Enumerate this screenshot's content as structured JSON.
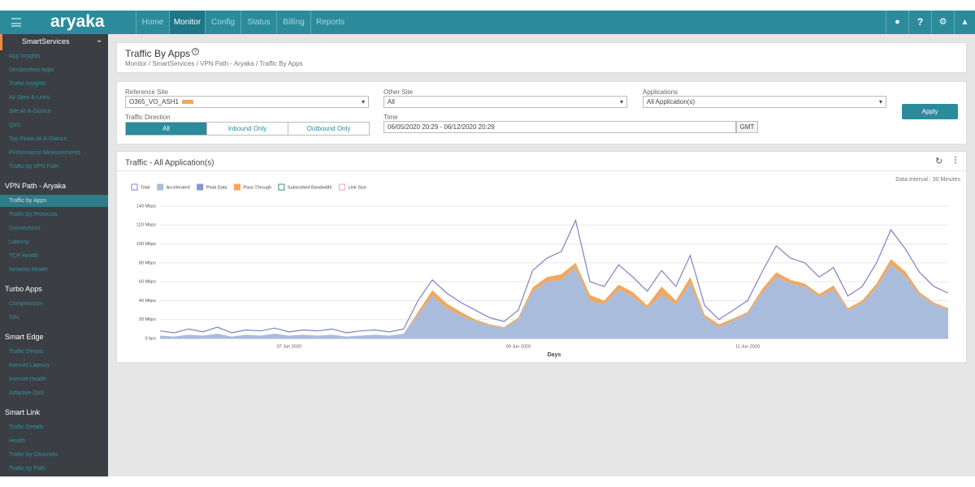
{
  "topbar": {
    "logo": "aryaka",
    "nav": [
      "Home",
      "Monitor",
      "Config",
      "Status",
      "Billing",
      "Reports"
    ]
  },
  "sidebar": [
    {
      "title": "SmartServices",
      "items": [
        "App Insights",
        "Unclassified Apps",
        "Traffic Insights",
        "All Sites & Links",
        "Site At-A-Glance",
        "QoS",
        "Top Flows At-A-Glance",
        "Performance Measurements",
        "Traffic by VPN Path"
      ]
    },
    {
      "title": "VPN Path - Aryaka",
      "items": [
        "Traffic by Apps",
        "Traffic by Protocols",
        "Connections",
        "Latency",
        "TCP Health",
        "Network Health"
      ]
    },
    {
      "title": "Turbo Apps",
      "items": [
        "Compression",
        "SSL"
      ]
    },
    {
      "title": "Smart Edge",
      "items": [
        "Traffic Details",
        "Internet Latency",
        "Internet Health",
        "Adaptive QoS"
      ]
    },
    {
      "title": "Smart Link",
      "items": [
        "Traffic Details",
        "Health",
        "Traffic by Channels",
        "Traffic by Path"
      ]
    }
  ],
  "header": {
    "title": "Traffic By Apps",
    "breadcrumb": "Monitor / SmartServices / VPN Path - Aryaka / Traffic By Apps"
  },
  "filters": {
    "reference_site": {
      "label": "Reference Site",
      "value": "O365_VO_ASH1"
    },
    "other_site": {
      "label": "Other Site",
      "value": "All"
    },
    "applications": {
      "label": "Applications",
      "value": "All Application(s)"
    },
    "traffic_direction": {
      "label": "Traffic Direction",
      "options": [
        "All",
        "Inbound Only",
        "Outbound Only"
      ]
    },
    "time": {
      "label": "Time",
      "value": "06/05/2020 20:29 - 06/12/2020 20:29",
      "timezone": "GMT"
    },
    "apply": "Apply"
  },
  "panel": {
    "data_interval": "Data Interval : 30 Minutes"
  },
  "chart_data": {
    "type": "area",
    "title": "Traffic - All Application(s)",
    "x_label": "Days",
    "categories": [
      null,
      null,
      null,
      null,
      null,
      null,
      null,
      null,
      null,
      "07 Jun 2020",
      null,
      null,
      null,
      null,
      null,
      null,
      null,
      null,
      null,
      null,
      null,
      null,
      null,
      null,
      null,
      "09 Jun 2020",
      null,
      null,
      null,
      null,
      null,
      null,
      null,
      null,
      null,
      null,
      null,
      null,
      null,
      null,
      null,
      "11 Jun 2020",
      null,
      null,
      null,
      null,
      null,
      null,
      null,
      null,
      null,
      null,
      null,
      null,
      null,
      null
    ],
    "series": [
      {
        "name": "Total",
        "color": "#7f80c6",
        "values": [
          8,
          6,
          10,
          7,
          12,
          6,
          9,
          8,
          11,
          7,
          9,
          8,
          10,
          6,
          8,
          9,
          7,
          10,
          40,
          62,
          48,
          38,
          30,
          22,
          18,
          30,
          72,
          85,
          92,
          125,
          60,
          55,
          78,
          65,
          50,
          72,
          55,
          88,
          35,
          20,
          30,
          40,
          70,
          98,
          85,
          80,
          65,
          75,
          45,
          55,
          80,
          115,
          95,
          70,
          55,
          48
        ]
      },
      {
        "name": "Accelerated",
        "color": "#a9bcdc",
        "values": [
          3,
          2,
          4,
          3,
          5,
          2,
          4,
          3,
          5,
          3,
          4,
          3,
          4,
          2,
          3,
          4,
          3,
          5,
          25,
          45,
          32,
          24,
          18,
          14,
          11,
          20,
          50,
          60,
          62,
          75,
          40,
          36,
          52,
          44,
          32,
          46,
          36,
          58,
          22,
          12,
          19,
          26,
          48,
          65,
          58,
          55,
          44,
          52,
          30,
          37,
          54,
          78,
          66,
          46,
          36,
          30
        ]
      },
      {
        "name": "Peak Data",
        "color": "#8a94d0"
      },
      {
        "name": "Pass-Through",
        "color": "#f0a860",
        "values": [
          0,
          0,
          0,
          0,
          0,
          0,
          0,
          0,
          0,
          0,
          0,
          0,
          0,
          0,
          0,
          0,
          0,
          0,
          3,
          6,
          5,
          4,
          2,
          1,
          1,
          2,
          4,
          5,
          6,
          5,
          6,
          4,
          5,
          5,
          3,
          9,
          4,
          7,
          3,
          3,
          2,
          2,
          4,
          5,
          4,
          3,
          3,
          4,
          2,
          3,
          4,
          6,
          5,
          3,
          2,
          2
        ]
      },
      {
        "name": "Subscribed Bandwidth",
        "color": "#3a8f6a"
      },
      {
        "name": "Link Size",
        "color": "#e8a4b4"
      }
    ],
    "ylim": [
      0,
      140
    ],
    "yticks": [
      {
        "value": 0,
        "label": "0 bps"
      },
      {
        "value": 20,
        "label": "20 Mbps"
      },
      {
        "value": 40,
        "label": "40 Mbps"
      },
      {
        "value": 60,
        "label": "60 Mbps"
      },
      {
        "value": 80,
        "label": "80 Mbps"
      },
      {
        "value": 100,
        "label": "100 Mbps"
      },
      {
        "value": 120,
        "label": "120 Mbps"
      },
      {
        "value": 140,
        "label": "140 Mbps"
      }
    ],
    "grid": true
  }
}
